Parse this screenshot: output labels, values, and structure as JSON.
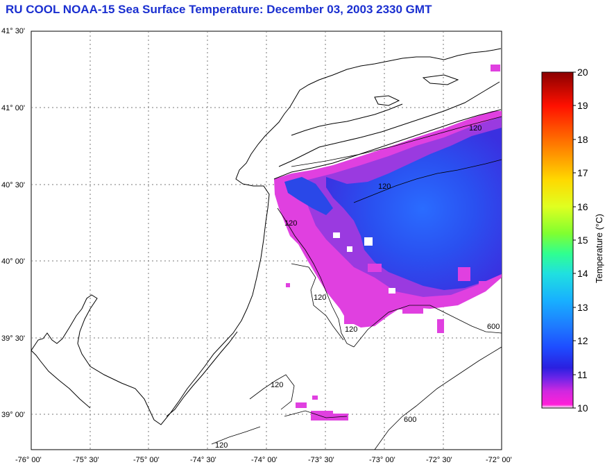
{
  "header": {
    "title": "RU COOL  NOAA-15  Sea Surface Temperature:  December 03, 2003 2330 GMT",
    "title_color": "#1a2fd0"
  },
  "map": {
    "lat_labels": [
      "41° 30'",
      "41° 00'",
      "40° 30'",
      "40° 00'",
      "39° 30'",
      "39° 00'"
    ],
    "lon_labels": [
      "-76° 00'",
      "-75° 30'",
      "-75° 00'",
      "-74° 30'",
      "-74° 00'",
      "-73° 30'",
      "-73° 00'",
      "-72° 30'",
      "-72° 00'"
    ],
    "isobath_labels": [
      "120",
      "120",
      "120",
      "120",
      "120",
      "120",
      "120",
      "600",
      "600"
    ]
  },
  "colorbar": {
    "label": "Temperature (°C)",
    "ticks": [
      "20",
      "19",
      "18",
      "17",
      "16",
      "15",
      "14",
      "13",
      "12",
      "11",
      "10"
    ],
    "colors": {
      "t10": "#ff20d8",
      "t11": "#2a20e0",
      "t12": "#1e5cff",
      "t13": "#18a8ff",
      "t14": "#20e0e0",
      "t15": "#40ff60",
      "t16": "#e0ff20",
      "t17": "#ffd800",
      "t18": "#ff9000",
      "t19": "#ff2000",
      "t20": "#8a0000"
    }
  }
}
